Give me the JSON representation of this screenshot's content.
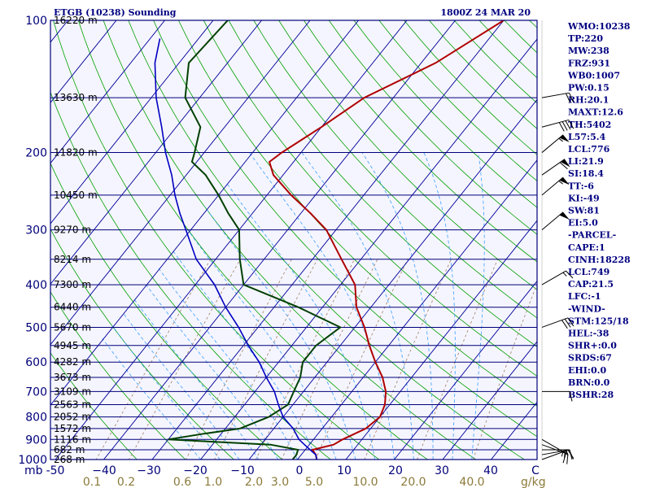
{
  "chart_data": {
    "type": "line",
    "title_left": "ETGB (10238) Sounding",
    "title_right": "1800Z 24 MAR 20",
    "x_axis": {
      "unit_label": "mb",
      "temperature_ticks": [
        -50,
        -40,
        -30,
        -20,
        -10,
        0,
        10,
        20,
        30,
        40
      ],
      "temperature_tick_labels": [
        "-50",
        "−40",
        "−30",
        "−20",
        "−10",
        "0",
        "10",
        "20",
        "30",
        "40"
      ],
      "end_label": "C",
      "mixing_ratio_labels": [
        "0.1",
        "0.2",
        "0.6",
        "1.0",
        "2.0",
        "3.0",
        "5.0",
        "10.0",
        "20.0",
        "40.0"
      ],
      "mixing_ratio_unit": "g/kg",
      "range_top": [
        -56,
        48
      ],
      "range_bottom": [
        -54,
        51
      ]
    },
    "y_axis": {
      "scale": "log-pressure",
      "range": [
        1000,
        100
      ],
      "tick_labels": [
        100,
        200,
        300,
        400,
        500,
        600,
        700,
        800,
        900,
        1000
      ]
    },
    "height_levels": [
      {
        "p": 100,
        "label": "16220 m"
      },
      {
        "p": 150,
        "label": "13630 m"
      },
      {
        "p": 200,
        "label": "11820 m"
      },
      {
        "p": 250,
        "label": "10450 m"
      },
      {
        "p": 300,
        "label": "9270 m"
      },
      {
        "p": 350,
        "label": "8214 m"
      },
      {
        "p": 400,
        "label": "7300 m"
      },
      {
        "p": 450,
        "label": "6440 m"
      },
      {
        "p": 500,
        "label": "5670 m"
      },
      {
        "p": 550,
        "label": "4945 m"
      },
      {
        "p": 600,
        "label": "4282 m"
      },
      {
        "p": 650,
        "label": "3673 m"
      },
      {
        "p": 700,
        "label": "3109 m"
      },
      {
        "p": 750,
        "label": "2563 m"
      },
      {
        "p": 800,
        "label": "2052 m"
      },
      {
        "p": 850,
        "label": "1572 m"
      },
      {
        "p": 900,
        "label": "1116 m"
      },
      {
        "p": 950,
        "label": "682 m"
      },
      {
        "p": 1000,
        "label": "268 m"
      }
    ],
    "series": [
      {
        "name": "temperature",
        "color": "#b00000",
        "points": [
          [
            1000,
            4
          ],
          [
            975,
            3
          ],
          [
            950,
            1.5
          ],
          [
            925,
            5
          ],
          [
            900,
            6
          ],
          [
            850,
            9
          ],
          [
            800,
            10
          ],
          [
            750,
            9
          ],
          [
            700,
            7
          ],
          [
            650,
            4
          ],
          [
            600,
            0
          ],
          [
            550,
            -4
          ],
          [
            500,
            -8
          ],
          [
            450,
            -13
          ],
          [
            400,
            -17
          ],
          [
            350,
            -24
          ],
          [
            300,
            -32
          ],
          [
            275,
            -38
          ],
          [
            250,
            -45
          ],
          [
            225,
            -52
          ],
          [
            210,
            -55
          ],
          [
            200,
            -54
          ],
          [
            175,
            -50
          ],
          [
            150,
            -46
          ],
          [
            125,
            -37
          ],
          [
            100,
            -30
          ]
        ]
      },
      {
        "name": "dewpoint",
        "color": "#004000",
        "points": [
          [
            1000,
            -1
          ],
          [
            975,
            -1
          ],
          [
            950,
            -1.5
          ],
          [
            925,
            -8
          ],
          [
            900,
            -30
          ],
          [
            875,
            -24
          ],
          [
            850,
            -17
          ],
          [
            800,
            -13
          ],
          [
            750,
            -11
          ],
          [
            700,
            -12
          ],
          [
            650,
            -13
          ],
          [
            600,
            -15
          ],
          [
            550,
            -15
          ],
          [
            500,
            -13
          ],
          [
            450,
            -25
          ],
          [
            400,
            -40
          ],
          [
            350,
            -45
          ],
          [
            300,
            -50
          ],
          [
            275,
            -55
          ],
          [
            250,
            -60
          ],
          [
            225,
            -66
          ],
          [
            210,
            -71
          ],
          [
            200,
            -72
          ],
          [
            175,
            -75
          ],
          [
            150,
            -83
          ],
          [
            125,
            -88
          ],
          [
            100,
            -87
          ]
        ]
      },
      {
        "name": "parcel",
        "color": "#0000c0",
        "points": [
          [
            1000,
            4
          ],
          [
            975,
            3
          ],
          [
            950,
            1
          ],
          [
            925,
            -1
          ],
          [
            900,
            -3
          ],
          [
            850,
            -6
          ],
          [
            800,
            -10
          ],
          [
            750,
            -13
          ],
          [
            700,
            -16
          ],
          [
            650,
            -20
          ],
          [
            600,
            -24
          ],
          [
            550,
            -29
          ],
          [
            500,
            -34
          ],
          [
            450,
            -40
          ],
          [
            400,
            -46
          ],
          [
            350,
            -54
          ],
          [
            300,
            -61
          ],
          [
            275,
            -65
          ],
          [
            250,
            -69
          ],
          [
            225,
            -73
          ],
          [
            200,
            -78
          ],
          [
            175,
            -83
          ],
          [
            150,
            -89
          ],
          [
            125,
            -95
          ],
          [
            110,
            -98
          ]
        ]
      }
    ],
    "wind_barbs": [
      {
        "p": 1000,
        "dir": 70,
        "spd": 15
      },
      {
        "p": 975,
        "dir": 80,
        "spd": 15
      },
      {
        "p": 950,
        "dir": 90,
        "spd": 15
      },
      {
        "p": 925,
        "dir": 110,
        "spd": 15
      },
      {
        "p": 900,
        "dir": 120,
        "spd": 15
      },
      {
        "p": 700,
        "dir": 90,
        "spd": 10
      },
      {
        "p": 500,
        "dir": 70,
        "spd": 30
      },
      {
        "p": 400,
        "dir": 60,
        "spd": 15
      },
      {
        "p": 300,
        "dir": 50,
        "spd": 50
      },
      {
        "p": 250,
        "dir": 50,
        "spd": 55
      },
      {
        "p": 225,
        "dir": 55,
        "spd": 60
      },
      {
        "p": 200,
        "dir": 50,
        "spd": 55
      },
      {
        "p": 175,
        "dir": 75,
        "spd": 40
      },
      {
        "p": 150,
        "dir": 80,
        "spd": 20
      }
    ],
    "indices": [
      "WMO:10238",
      "TP:220",
      "MW:238",
      "FRZ:931",
      "WB0:1007",
      "PW:0.15",
      "RH:20.1",
      "MAXT:12.6",
      "TH:5402",
      "L57:5.4",
      "LCL:776",
      "LI:21.9",
      "SI:18.4",
      "TT:-6",
      "KI:-49",
      "SW:81",
      "EI:5.0",
      "-PARCEL-",
      "CAPE:1",
      "CINH:18228",
      "LCL:749",
      "CAP:21.5",
      "LFC:-1",
      "-WIND-",
      "STM:125/18",
      "HEL:-38",
      "SHR+:0.0",
      "SRDS:67",
      "EHI:0.0",
      "BRN:0.0",
      "BSHR:28"
    ],
    "colors": {
      "background": "#f5f5ff",
      "isobar": "#00007a",
      "isotherm": "#00009a",
      "dry_adiabat": "#00a000",
      "moist_adiabat": "#3aa0ff",
      "mixing_ratio": "#a08060",
      "indices_text": "#000080",
      "mixing_ratio_label": "#8b7a3a"
    }
  }
}
